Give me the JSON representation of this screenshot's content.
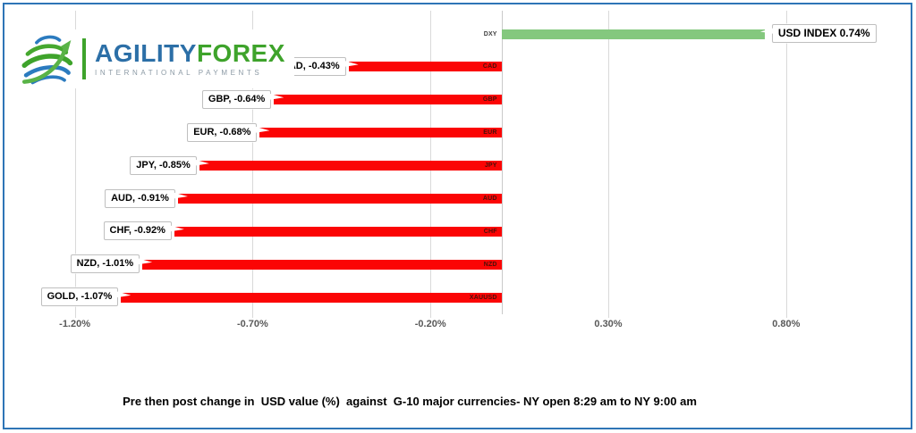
{
  "logo": {
    "brand_primary": "AGILITY",
    "brand_secondary": "FOREX",
    "tagline": "INTERNATIONAL PAYMENTS"
  },
  "caption": "Pre then post change in  USD value (%)  against  G-10 major currencies- NY open 8:29 am to NY 9:00 am",
  "colors": {
    "bar_negative": "#fb0505",
    "bar_positive": "#84c87e",
    "grid": "#d9d9d9",
    "axis_text": "#595959",
    "frame_border": "#2e75b6",
    "callout_border": "#bfbfbf",
    "cat_label_on_red_bar": "#4a100a",
    "cat_label_dxy": "#3f3f3f"
  },
  "chart_data": {
    "type": "bar",
    "orientation": "horizontal",
    "grid": true,
    "xlim": [
      -1.36,
      1.12
    ],
    "x_ticks": [
      "-1.20%",
      "-0.70%",
      "-0.20%",
      "0.30%",
      "0.80%"
    ],
    "x_tick_values": [
      -1.2,
      -0.7,
      -0.2,
      0.3,
      0.8
    ],
    "categories": [
      "DXY",
      "CAD",
      "GBP",
      "EUR",
      "JPY",
      "AUD",
      "CHF",
      "NZD",
      "XAUUSD"
    ],
    "values": [
      0.74,
      -0.43,
      -0.64,
      -0.68,
      -0.85,
      -0.91,
      -0.92,
      -1.01,
      -1.07
    ],
    "points": [
      {
        "category": "DXY",
        "value": 0.74,
        "label": "USD INDEX 0.74%",
        "color_role": "positive"
      },
      {
        "category": "CAD",
        "value": -0.43,
        "label": "CAD, -0.43%",
        "color_role": "negative"
      },
      {
        "category": "GBP",
        "value": -0.64,
        "label": "GBP, -0.64%",
        "color_role": "negative"
      },
      {
        "category": "EUR",
        "value": -0.68,
        "label": "EUR, -0.68%",
        "color_role": "negative"
      },
      {
        "category": "JPY",
        "value": -0.85,
        "label": "JPY, -0.85%",
        "color_role": "negative"
      },
      {
        "category": "AUD",
        "value": -0.91,
        "label": "AUD, -0.91%",
        "color_role": "negative"
      },
      {
        "category": "CHF",
        "value": -0.92,
        "label": "CHF, -0.92%",
        "color_role": "negative"
      },
      {
        "category": "NZD",
        "value": -1.01,
        "label": "NZD, -1.01%",
        "color_role": "negative"
      },
      {
        "category": "XAUUSD",
        "value": -1.07,
        "label": "GOLD, -1.07%",
        "color_role": "negative"
      }
    ],
    "title": "",
    "xlabel": "",
    "ylabel": ""
  }
}
